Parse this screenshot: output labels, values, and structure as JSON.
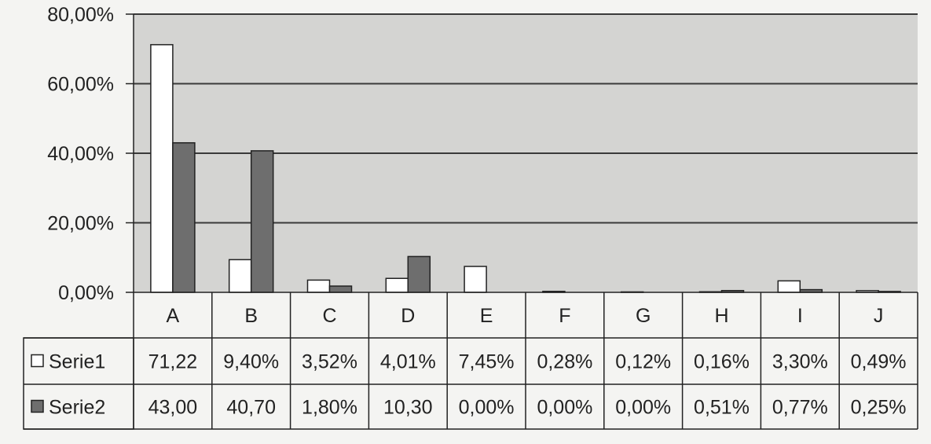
{
  "chart_data": {
    "type": "bar",
    "categories": [
      "A",
      "B",
      "C",
      "D",
      "E",
      "F",
      "G",
      "H",
      "I",
      "J"
    ],
    "series": [
      {
        "name": "Serie1",
        "values": [
          71.22,
          9.4,
          3.52,
          4.01,
          7.45,
          0.28,
          0.12,
          0.16,
          3.3,
          0.49
        ],
        "labels": [
          "71,22",
          "9,40%",
          "3,52%",
          "4,01%",
          "7,45%",
          "0,28%",
          "0,12%",
          "0,16%",
          "3,30%",
          "0,49%"
        ],
        "color": "#ffffff"
      },
      {
        "name": "Serie2",
        "values": [
          43.0,
          40.7,
          1.8,
          10.3,
          0.0,
          0.0,
          0.0,
          0.51,
          0.77,
          0.25
        ],
        "labels": [
          "43,00",
          "40,70",
          "1,80%",
          "10,30",
          "0,00%",
          "0,00%",
          "0,00%",
          "0,51%",
          "0,77%",
          "0,25%"
        ],
        "color": "#6e6e6e"
      }
    ],
    "yticks": [
      "0,00%",
      "20,00%",
      "40,00%",
      "60,00%",
      "80,00%"
    ],
    "ylim": [
      0,
      80
    ],
    "grid": true,
    "legend": "data-table",
    "plot_background": "#d4d4d2",
    "gridline_color": "#3a3a3a"
  }
}
